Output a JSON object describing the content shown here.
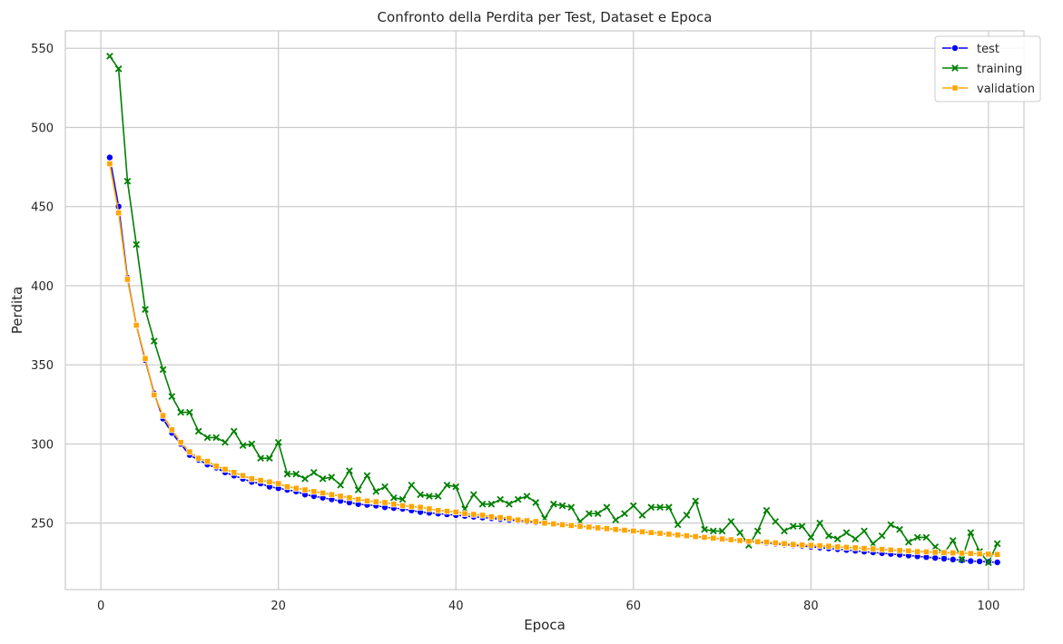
{
  "chart_data": {
    "type": "line",
    "title": "Confronto della Perdita per Test, Dataset e Epoca",
    "xlabel": "Epoca",
    "ylabel": "Perdita",
    "xlim": [
      -4,
      104
    ],
    "ylim": [
      208,
      561
    ],
    "xticks": [
      0,
      20,
      40,
      60,
      80,
      100
    ],
    "yticks": [
      250,
      300,
      350,
      400,
      450,
      500,
      550
    ],
    "grid": true,
    "legend_position": "top-right",
    "x": [
      1,
      2,
      3,
      4,
      5,
      6,
      7,
      8,
      9,
      10,
      11,
      12,
      13,
      14,
      15,
      16,
      17,
      18,
      19,
      20,
      21,
      22,
      23,
      24,
      25,
      26,
      27,
      28,
      29,
      30,
      31,
      32,
      33,
      34,
      35,
      36,
      37,
      38,
      39,
      40,
      41,
      42,
      43,
      44,
      45,
      46,
      47,
      48,
      49,
      50,
      51,
      52,
      53,
      54,
      55,
      56,
      57,
      58,
      59,
      60,
      61,
      62,
      63,
      64,
      65,
      66,
      67,
      68,
      69,
      70,
      71,
      72,
      73,
      74,
      75,
      76,
      77,
      78,
      79,
      80,
      81,
      82,
      83,
      84,
      85,
      86,
      87,
      88,
      89,
      90,
      91,
      92,
      93,
      94,
      95,
      96,
      97,
      98,
      99,
      100,
      101
    ],
    "series": [
      {
        "name": "test",
        "color": "#0000ff",
        "marker": "circle",
        "values": [
          481,
          450,
          405,
          375,
          353,
          332,
          316,
          307,
          300,
          293,
          290,
          287,
          285,
          282,
          280,
          278,
          276,
          275,
          273,
          272,
          271,
          270,
          268,
          267,
          266,
          265,
          264,
          263,
          262,
          261.5,
          261,
          260,
          259.5,
          259,
          258,
          257,
          256.5,
          256,
          255.5,
          255,
          254.5,
          254,
          253.5,
          253,
          252.5,
          252,
          251.5,
          251,
          250.5,
          250,
          249.5,
          249,
          248.5,
          248,
          247.5,
          247,
          246.5,
          246,
          245.5,
          245,
          244.5,
          244,
          243.5,
          243,
          242.5,
          242,
          241.5,
          241,
          240.5,
          240,
          239.5,
          239,
          238.5,
          238,
          237.5,
          237,
          236.5,
          236,
          235.5,
          235,
          234.5,
          234,
          233.5,
          233,
          232.5,
          232,
          231.5,
          231,
          230.5,
          230,
          229.5,
          229,
          228.5,
          228,
          227.5,
          227,
          226.5,
          226,
          225.8,
          225.5,
          225.2
        ]
      },
      {
        "name": "training",
        "color": "#008000",
        "marker": "x",
        "values": [
          545,
          537,
          466,
          426,
          385,
          365,
          347,
          330,
          320,
          320,
          308,
          304,
          304,
          301,
          308,
          299,
          300,
          291,
          291,
          301,
          281,
          281,
          278,
          282,
          278,
          279,
          274,
          283,
          271,
          280,
          270,
          273,
          266,
          265,
          274,
          268,
          267,
          267,
          274,
          273,
          259,
          268,
          262,
          262,
          265,
          262,
          265,
          267,
          263,
          253,
          262,
          261,
          260,
          251,
          256,
          256,
          260,
          252,
          256,
          261,
          255,
          260,
          260,
          260,
          249,
          255,
          264,
          246,
          245,
          245,
          251,
          244,
          236,
          245,
          258,
          251,
          245,
          248,
          248,
          241,
          250,
          242,
          240,
          244,
          240,
          245,
          237,
          242,
          249,
          246,
          238,
          241,
          241,
          235,
          231,
          239,
          227,
          244,
          232,
          225,
          237
        ]
      },
      {
        "name": "validation",
        "color": "#ffa500",
        "marker": "square",
        "values": [
          477,
          446,
          404,
          375,
          354,
          331,
          318,
          309,
          301,
          295,
          291,
          289,
          286,
          284,
          282,
          280,
          278,
          277,
          276,
          275,
          273,
          272,
          271,
          270,
          269,
          268,
          267,
          266,
          265,
          264,
          263.5,
          263,
          262,
          261,
          260.5,
          260,
          259,
          258,
          257.5,
          257,
          256,
          255.5,
          255,
          254,
          253.5,
          253,
          252,
          251.5,
          251,
          250,
          249.5,
          249,
          248.5,
          248,
          247.5,
          247,
          246.5,
          246,
          245.5,
          245,
          244.5,
          244,
          243.5,
          243,
          242.5,
          242,
          241.5,
          241,
          240.5,
          240,
          239.5,
          239,
          238.5,
          238.2,
          238,
          237.5,
          237,
          236.5,
          236.2,
          236,
          235.7,
          235.4,
          235,
          234.7,
          234.4,
          234,
          233.7,
          233.4,
          233,
          232.7,
          232.4,
          232,
          231.8,
          231.6,
          231.4,
          231.2,
          231,
          230.8,
          230.6,
          230.4,
          230.2
        ]
      }
    ]
  }
}
